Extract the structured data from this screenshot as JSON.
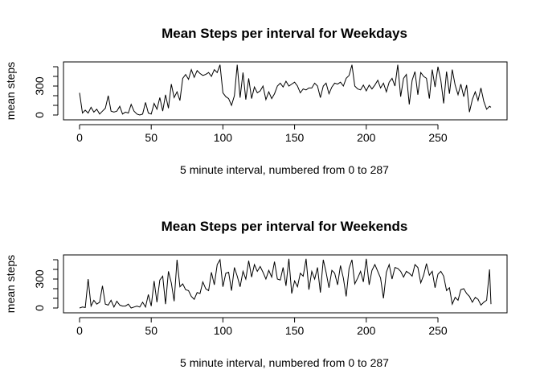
{
  "chart_data": [
    {
      "type": "line",
      "title": "Mean Steps per interval for Weekdays",
      "xlabel": "5 minute interval, numbered from 0 to 287",
      "ylabel": "mean steps",
      "xlim": [
        0,
        287
      ],
      "ylim": [
        0,
        500
      ],
      "xticks": [
        0,
        50,
        100,
        150,
        200,
        250
      ],
      "yticks": [
        0,
        100,
        200,
        300,
        400,
        500
      ],
      "ytick_labels": [
        "0",
        "",
        "",
        "300",
        "",
        ""
      ],
      "series": [
        {
          "x": [
            0,
            2,
            4,
            6,
            8,
            10,
            12,
            14,
            16,
            18,
            20,
            22,
            24,
            26,
            28,
            30,
            32,
            34,
            36,
            38,
            40,
            42,
            44,
            46,
            48,
            50,
            52,
            54,
            56,
            58,
            60,
            62,
            64,
            66,
            68,
            70,
            72,
            74,
            76,
            78,
            80,
            82,
            84,
            86,
            88,
            90,
            92,
            94,
            96,
            98,
            100,
            102,
            104,
            106,
            108,
            110,
            112,
            114,
            116,
            118,
            120,
            122,
            124,
            126,
            128,
            130,
            132,
            134,
            136,
            138,
            140,
            142,
            144,
            146,
            148,
            150,
            152,
            154,
            156,
            158,
            160,
            162,
            164,
            166,
            168,
            170,
            172,
            174,
            176,
            178,
            180,
            182,
            184,
            186,
            188,
            190,
            192,
            194,
            196,
            198,
            200,
            202,
            204,
            206,
            208,
            210,
            212,
            214,
            216,
            218,
            220,
            222,
            224,
            226,
            228,
            230,
            232,
            234,
            236,
            238,
            240,
            242,
            244,
            246,
            248,
            250,
            252,
            254,
            256,
            258,
            260,
            262,
            264,
            266,
            268,
            270,
            272,
            274,
            276,
            278,
            280,
            282,
            284,
            286,
            287
          ],
          "y": [
            230,
            20,
            50,
            20,
            80,
            30,
            60,
            10,
            40,
            70,
            200,
            40,
            30,
            40,
            90,
            10,
            30,
            20,
            110,
            40,
            10,
            0,
            10,
            130,
            20,
            10,
            120,
            60,
            180,
            40,
            210,
            70,
            320,
            180,
            240,
            150,
            380,
            420,
            370,
            470,
            390,
            460,
            430,
            410,
            420,
            440,
            400,
            470,
            440,
            520,
            230,
            190,
            170,
            100,
            200,
            520,
            180,
            440,
            160,
            380,
            170,
            290,
            230,
            250,
            300,
            160,
            240,
            170,
            220,
            300,
            330,
            290,
            350,
            300,
            320,
            340,
            300,
            230,
            270,
            260,
            280,
            280,
            330,
            300,
            180,
            300,
            330,
            220,
            290,
            330,
            320,
            340,
            300,
            380,
            410,
            520,
            300,
            270,
            260,
            310,
            250,
            310,
            270,
            310,
            360,
            280,
            330,
            240,
            340,
            380,
            300,
            520,
            190,
            380,
            420,
            110,
            360,
            450,
            210,
            440,
            400,
            380,
            170,
            470,
            290,
            500,
            360,
            120,
            450,
            220,
            470,
            310,
            210,
            320,
            190,
            310,
            30,
            160,
            240,
            150,
            280,
            140,
            60,
            90,
            80
          ]
        }
      ]
    },
    {
      "type": "line",
      "title": "Mean Steps per interval for Weekends",
      "xlabel": "5 minute interval, numbered from 0 to 287",
      "ylabel": "mean steps",
      "xlim": [
        0,
        287
      ],
      "ylim": [
        0,
        500
      ],
      "xticks": [
        0,
        50,
        100,
        150,
        200,
        250
      ],
      "yticks": [
        0,
        100,
        200,
        300,
        400,
        500
      ],
      "ytick_labels": [
        "0",
        "",
        "",
        "300",
        "",
        ""
      ],
      "series": [
        {
          "x": [
            0,
            2,
            4,
            6,
            8,
            10,
            12,
            14,
            16,
            18,
            20,
            22,
            24,
            26,
            28,
            30,
            32,
            34,
            36,
            38,
            40,
            42,
            44,
            46,
            48,
            50,
            52,
            54,
            56,
            58,
            60,
            62,
            64,
            66,
            68,
            70,
            72,
            74,
            76,
            78,
            80,
            82,
            84,
            86,
            88,
            90,
            92,
            94,
            96,
            98,
            100,
            102,
            104,
            106,
            108,
            110,
            112,
            114,
            116,
            118,
            120,
            122,
            124,
            126,
            128,
            130,
            132,
            134,
            136,
            138,
            140,
            142,
            144,
            146,
            148,
            150,
            152,
            154,
            156,
            158,
            160,
            162,
            164,
            166,
            168,
            170,
            172,
            174,
            176,
            178,
            180,
            182,
            184,
            186,
            188,
            190,
            192,
            194,
            196,
            198,
            200,
            202,
            204,
            206,
            208,
            210,
            212,
            214,
            216,
            218,
            220,
            222,
            224,
            226,
            228,
            230,
            232,
            234,
            236,
            238,
            240,
            242,
            244,
            246,
            248,
            250,
            252,
            254,
            256,
            258,
            260,
            262,
            264,
            266,
            268,
            270,
            272,
            274,
            276,
            278,
            280,
            282,
            284,
            286,
            287
          ],
          "y": [
            0,
            10,
            5,
            300,
            20,
            80,
            40,
            60,
            230,
            40,
            30,
            80,
            10,
            70,
            30,
            20,
            20,
            40,
            0,
            10,
            20,
            10,
            60,
            10,
            140,
            20,
            280,
            60,
            290,
            330,
            40,
            380,
            260,
            70,
            500,
            220,
            250,
            190,
            180,
            120,
            90,
            160,
            150,
            270,
            200,
            180,
            370,
            240,
            450,
            500,
            220,
            360,
            370,
            180,
            420,
            330,
            220,
            380,
            300,
            490,
            320,
            450,
            380,
            430,
            370,
            300,
            390,
            320,
            480,
            300,
            290,
            420,
            230,
            510,
            150,
            280,
            220,
            360,
            330,
            510,
            190,
            380,
            300,
            420,
            160,
            500,
            370,
            210,
            390,
            360,
            240,
            440,
            310,
            120,
            410,
            500,
            250,
            310,
            380,
            270,
            510,
            240,
            390,
            450,
            380,
            310,
            100,
            370,
            450,
            300,
            420,
            410,
            380,
            320,
            380,
            360,
            330,
            450,
            420,
            260,
            340,
            460,
            340,
            380,
            210,
            350,
            380,
            330,
            180,
            210,
            40,
            110,
            80,
            190,
            200,
            150,
            120,
            60,
            110,
            90,
            30,
            60,
            80,
            400,
            40
          ]
        }
      ]
    }
  ]
}
